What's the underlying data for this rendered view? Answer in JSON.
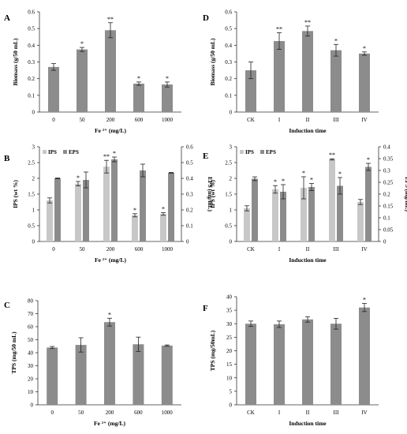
{
  "colors": {
    "bar": "#8c8c8c",
    "ips": "#c7c7c7",
    "eps": "#8c8c8c",
    "axis": "#333333",
    "error": "#222222"
  },
  "legend": {
    "ips": "IPS",
    "eps": "EPS"
  },
  "chart_data": [
    {
      "panel": "A",
      "type": "bar",
      "categories": [
        "0",
        "50",
        "200",
        "600",
        "1000"
      ],
      "values": [
        0.27,
        0.375,
        0.49,
        0.17,
        0.165
      ],
      "errors": [
        0.02,
        0.012,
        0.045,
        0.01,
        0.015
      ],
      "sig": [
        "",
        "*",
        "**",
        "*",
        "*"
      ],
      "xlabel": "Fe ²⁺ (mg/L)",
      "ylabel": "Biomass (g/50 mL)",
      "ylim": [
        0,
        0.6
      ],
      "yticks": [
        "0",
        "0.1",
        "0.2",
        "0.3",
        "0.4",
        "0.5",
        "0.6"
      ]
    },
    {
      "panel": "B",
      "type": "bar",
      "categories": [
        "0",
        "50",
        "200",
        "600",
        "1000"
      ],
      "series": [
        {
          "name": "IPS",
          "axis": "left",
          "values": [
            1.3,
            1.83,
            2.37,
            0.83,
            0.87
          ],
          "errors": [
            0.08,
            0.07,
            0.2,
            0.05,
            0.04
          ],
          "sig": [
            "",
            "*",
            "**",
            "*",
            "*"
          ]
        },
        {
          "name": "EPS",
          "axis": "right",
          "values": [
            0.4,
            0.39,
            0.52,
            0.45,
            0.435
          ],
          "errors": [
            0.002,
            0.05,
            0.015,
            0.04,
            0.002
          ],
          "sig": [
            "",
            "",
            "*",
            "",
            ""
          ]
        }
      ],
      "xlabel": "Fe ²⁺ (mg/L)",
      "ylabel": "IPS (wt %)",
      "ylabel_right": "EPS (mg/mL)",
      "ylim": [
        0,
        3
      ],
      "yticks": [
        "0",
        "0.5",
        "1",
        "1.5",
        "2",
        "2.5",
        "3"
      ],
      "ylim_right": [
        0,
        0.6
      ],
      "yticks_right": [
        "0",
        "0.1",
        "0.2",
        "0.3",
        "0.4",
        "0.5",
        "0.6"
      ],
      "legend": "top-left"
    },
    {
      "panel": "C",
      "type": "bar",
      "categories": [
        "0",
        "50",
        "200",
        "600",
        "1000"
      ],
      "values": [
        44,
        46,
        63.5,
        46.5,
        45.5
      ],
      "errors": [
        0.8,
        5.5,
        3,
        5.5,
        0.5
      ],
      "sig": [
        "",
        "",
        "*",
        "",
        ""
      ],
      "xlabel": "Fe ²⁺ (mg/L)",
      "ylabel": "TPS (mg/50 mL)",
      "ylim": [
        0,
        80
      ],
      "yticks": [
        "0",
        "10",
        "20",
        "30",
        "40",
        "50",
        "60",
        "70",
        "80"
      ]
    },
    {
      "panel": "D",
      "type": "bar",
      "categories": [
        "CK",
        "I",
        "II",
        "III",
        "IV"
      ],
      "values": [
        0.25,
        0.425,
        0.485,
        0.37,
        0.35
      ],
      "errors": [
        0.05,
        0.05,
        0.03,
        0.035,
        0.01
      ],
      "sig": [
        "",
        "**",
        "**",
        "*",
        "*"
      ],
      "xlabel": "Induction time",
      "ylabel": "Biomass (g/50 mL)",
      "ylim": [
        0,
        0.6
      ],
      "yticks": [
        "0",
        "0.1",
        "0.2",
        "0.3",
        "0.4",
        "0.5",
        "0.6"
      ]
    },
    {
      "panel": "E",
      "type": "bar",
      "categories": [
        "CK",
        "I",
        "II",
        "III",
        "IV"
      ],
      "series": [
        {
          "name": "IPS",
          "axis": "left",
          "values": [
            1.05,
            1.65,
            1.7,
            2.6,
            1.25
          ],
          "errors": [
            0.08,
            0.12,
            0.35,
            0.02,
            0.08
          ],
          "sig": [
            "",
            "*",
            "*",
            "**",
            ""
          ]
        },
        {
          "name": "EPS",
          "axis": "right",
          "values": [
            0.265,
            0.21,
            0.23,
            0.235,
            0.315
          ],
          "errors": [
            0.008,
            0.03,
            0.015,
            0.035,
            0.015
          ],
          "sig": [
            "",
            "*",
            "*",
            "*",
            "*"
          ]
        }
      ],
      "xlabel": "Induction time",
      "ylabel": "IPS (wt %)",
      "ylabel_right": "EPS (mg/mL)",
      "ylim": [
        0,
        3
      ],
      "yticks": [
        "0",
        "0.5",
        "1",
        "1.5",
        "2",
        "2.5",
        "3"
      ],
      "ylim_right": [
        0,
        0.4
      ],
      "yticks_right": [
        "0",
        "0.05",
        "0.1",
        "0.15",
        "0.2",
        "0.25",
        "0.3",
        "0.35",
        "0.4"
      ],
      "legend": "top-left"
    },
    {
      "panel": "F",
      "type": "bar",
      "categories": [
        "CK",
        "I",
        "II",
        "III",
        "IV"
      ],
      "values": [
        30,
        29.8,
        31.6,
        30,
        36
      ],
      "errors": [
        1,
        1.2,
        1,
        2,
        1.5
      ],
      "sig": [
        "",
        "",
        "",
        "",
        "*"
      ],
      "xlabel": "Induction time",
      "ylabel": "TPS (mg/50mL)",
      "ylim": [
        0,
        40
      ],
      "yticks": [
        "0",
        "5",
        "10",
        "15",
        "20",
        "25",
        "30",
        "35",
        "40"
      ]
    }
  ]
}
